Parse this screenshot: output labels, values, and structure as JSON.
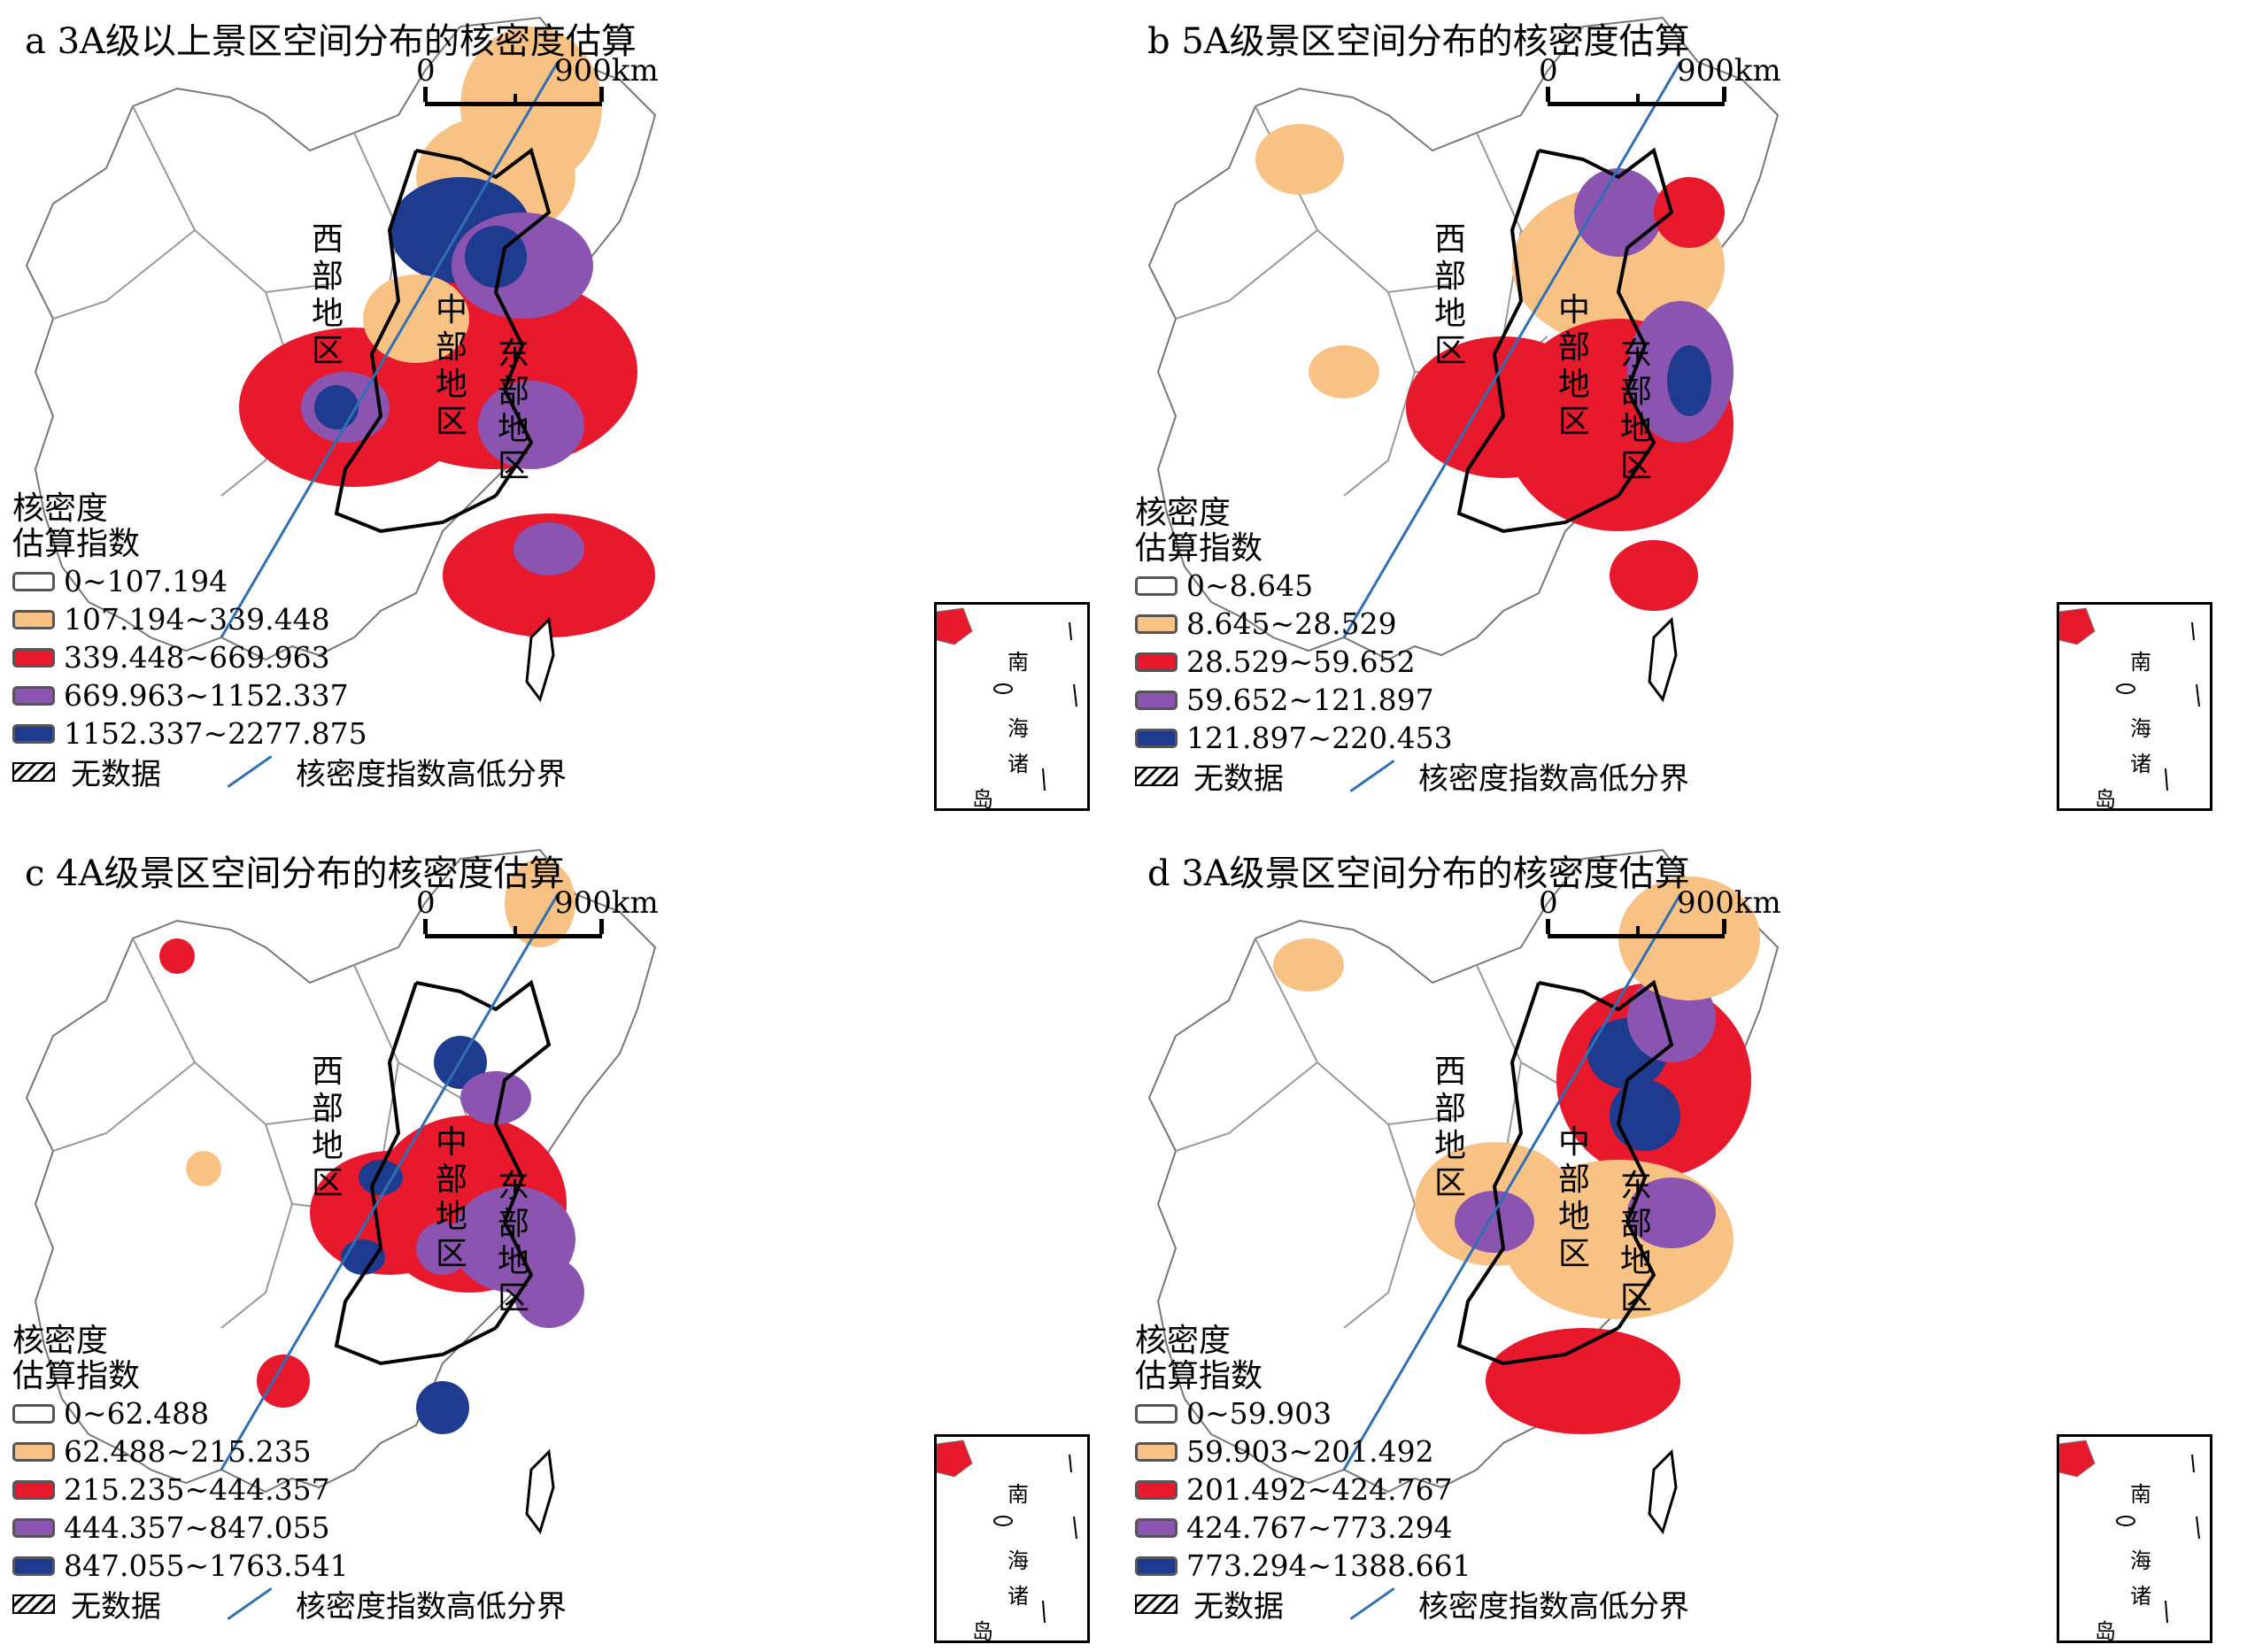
{
  "colors": {
    "c0": "#ffffff",
    "c1": "#f8c285",
    "c2": "#e8192c",
    "c3": "#8a54b0",
    "c4": "#1f3b8f",
    "divider": "#2f6fb5"
  },
  "common": {
    "scale_zero": "0",
    "scale_distance": "900km",
    "legend_title_line1": "核密度",
    "legend_title_line2": "估算指数",
    "no_data": "无数据",
    "divider_label": "核密度指数高低分界",
    "region_west": "西部地区",
    "region_central": "中部地区",
    "region_east": "东部地区",
    "inset_chars": [
      "南",
      "海",
      "诸",
      "岛"
    ]
  },
  "panels": [
    {
      "id": "a",
      "title": "a  3A级以上景区空间分布的核密度估算",
      "classes": [
        "0~107.194",
        "107.194~339.448",
        "339.448~669.963",
        "669.963~1152.337",
        "1152.337~2277.875"
      ]
    },
    {
      "id": "b",
      "title": "b  5A级景区空间分布的核密度估算",
      "classes": [
        "0~8.645",
        "8.645~28.529",
        "28.529~59.652",
        "59.652~121.897",
        "121.897~220.453"
      ]
    },
    {
      "id": "c",
      "title": "c  4A级景区空间分布的核密度估算",
      "classes": [
        "0~62.488",
        "62.488~215.235",
        "215.235~444.357",
        "444.357~847.055",
        "847.055~1763.541"
      ]
    },
    {
      "id": "d",
      "title": "d  3A级景区空间分布的核密度估算",
      "classes": [
        "0~59.903",
        "59.903~201.492",
        "201.492~424.767",
        "424.767~773.294",
        "773.294~1388.661"
      ]
    }
  ]
}
